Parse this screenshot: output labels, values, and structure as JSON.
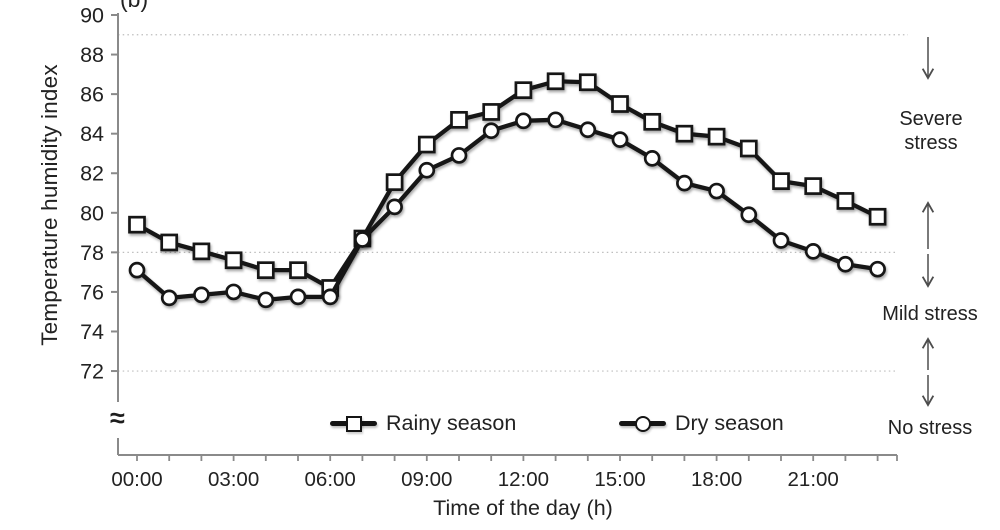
{
  "panel_label": "(b)",
  "chart_data": {
    "type": "line",
    "title": "",
    "xlabel": "Time of the day (h)",
    "ylabel": "Temperature humidity index",
    "x_hours": [
      0,
      1,
      2,
      3,
      4,
      5,
      6,
      7,
      8,
      9,
      10,
      11,
      12,
      13,
      14,
      15,
      16,
      17,
      18,
      19,
      20,
      21,
      22,
      23
    ],
    "xtick_hours": [
      0,
      3,
      6,
      9,
      12,
      15,
      18,
      21
    ],
    "xtick_labels": [
      "00:00",
      "03:00",
      "06:00",
      "09:00",
      "12:00",
      "15:00",
      "18:00",
      "21:00"
    ],
    "yticks": [
      90,
      88,
      86,
      84,
      82,
      80,
      78,
      76,
      74,
      72
    ],
    "ylim": [
      72,
      90
    ],
    "axis_break_symbol": "≈",
    "gridlines": [
      89,
      78,
      72
    ],
    "grid_style": "dotted",
    "legend_position": "bottom-inside",
    "series": [
      {
        "name": "Rainy season",
        "marker": "square",
        "values": [
          79.4,
          78.5,
          78.05,
          77.6,
          77.1,
          77.1,
          76.2,
          78.7,
          81.55,
          83.45,
          84.7,
          85.1,
          86.2,
          86.65,
          86.6,
          85.5,
          84.6,
          84.0,
          83.85,
          83.25,
          81.6,
          81.35,
          80.6,
          79.8
        ]
      },
      {
        "name": "Dry season",
        "marker": "circle",
        "values": [
          77.1,
          75.7,
          75.85,
          76.0,
          75.6,
          75.75,
          75.75,
          78.65,
          80.3,
          82.15,
          82.9,
          84.15,
          84.65,
          84.7,
          84.2,
          83.7,
          82.75,
          81.5,
          81.1,
          79.9,
          78.6,
          78.05,
          77.4,
          77.15
        ]
      }
    ]
  },
  "annotations": {
    "severe_stress": {
      "label": "Severe stress",
      "between_thi": [
        78,
        89
      ]
    },
    "mild_stress": {
      "label": "Mild stress",
      "between_thi": [
        72,
        78
      ]
    },
    "no_stress": {
      "label": "No stress",
      "below_thi": 72
    }
  },
  "colors": {
    "line": "#151515",
    "marker_fill": "#ffffff",
    "grid": "#bdbdbd",
    "axis": "#8a8a8a",
    "text": "#222222",
    "arrow": "#4d4d4d"
  }
}
